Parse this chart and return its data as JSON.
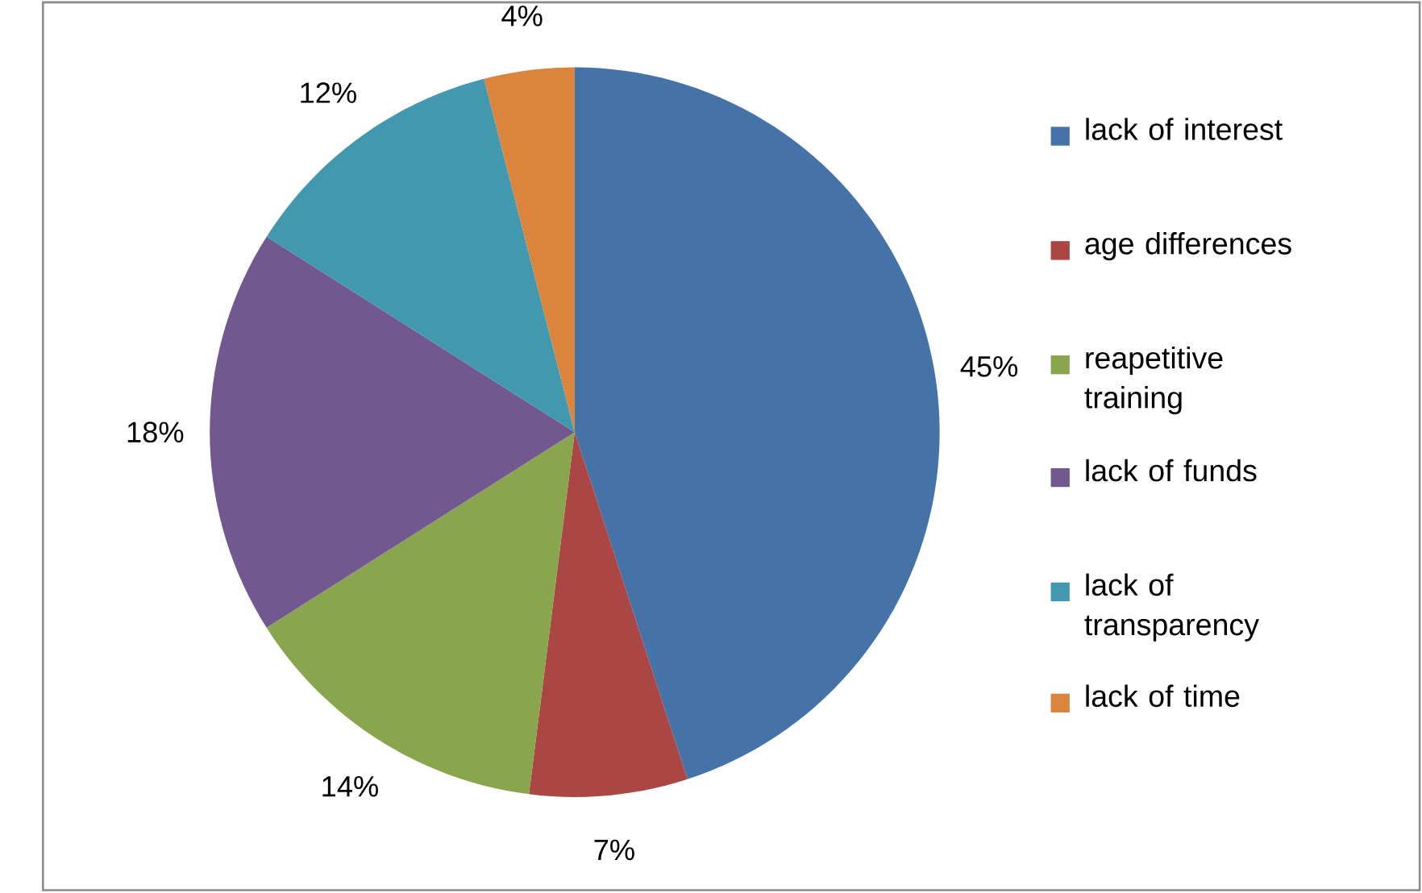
{
  "chart_data": {
    "type": "pie",
    "categories": [
      "lack of interest",
      "age differences",
      "reapetitive training",
      "lack of funds",
      "lack of transparency",
      "lack of time"
    ],
    "values": [
      45,
      7,
      14,
      18,
      12,
      4
    ],
    "colors": [
      "#4572a7",
      "#aa4643",
      "#89a54e",
      "#71588f",
      "#4198af",
      "#db843d"
    ],
    "value_labels": [
      "45%",
      "7%",
      "14%",
      "18%",
      "12%",
      "4%"
    ],
    "legend": "right"
  }
}
